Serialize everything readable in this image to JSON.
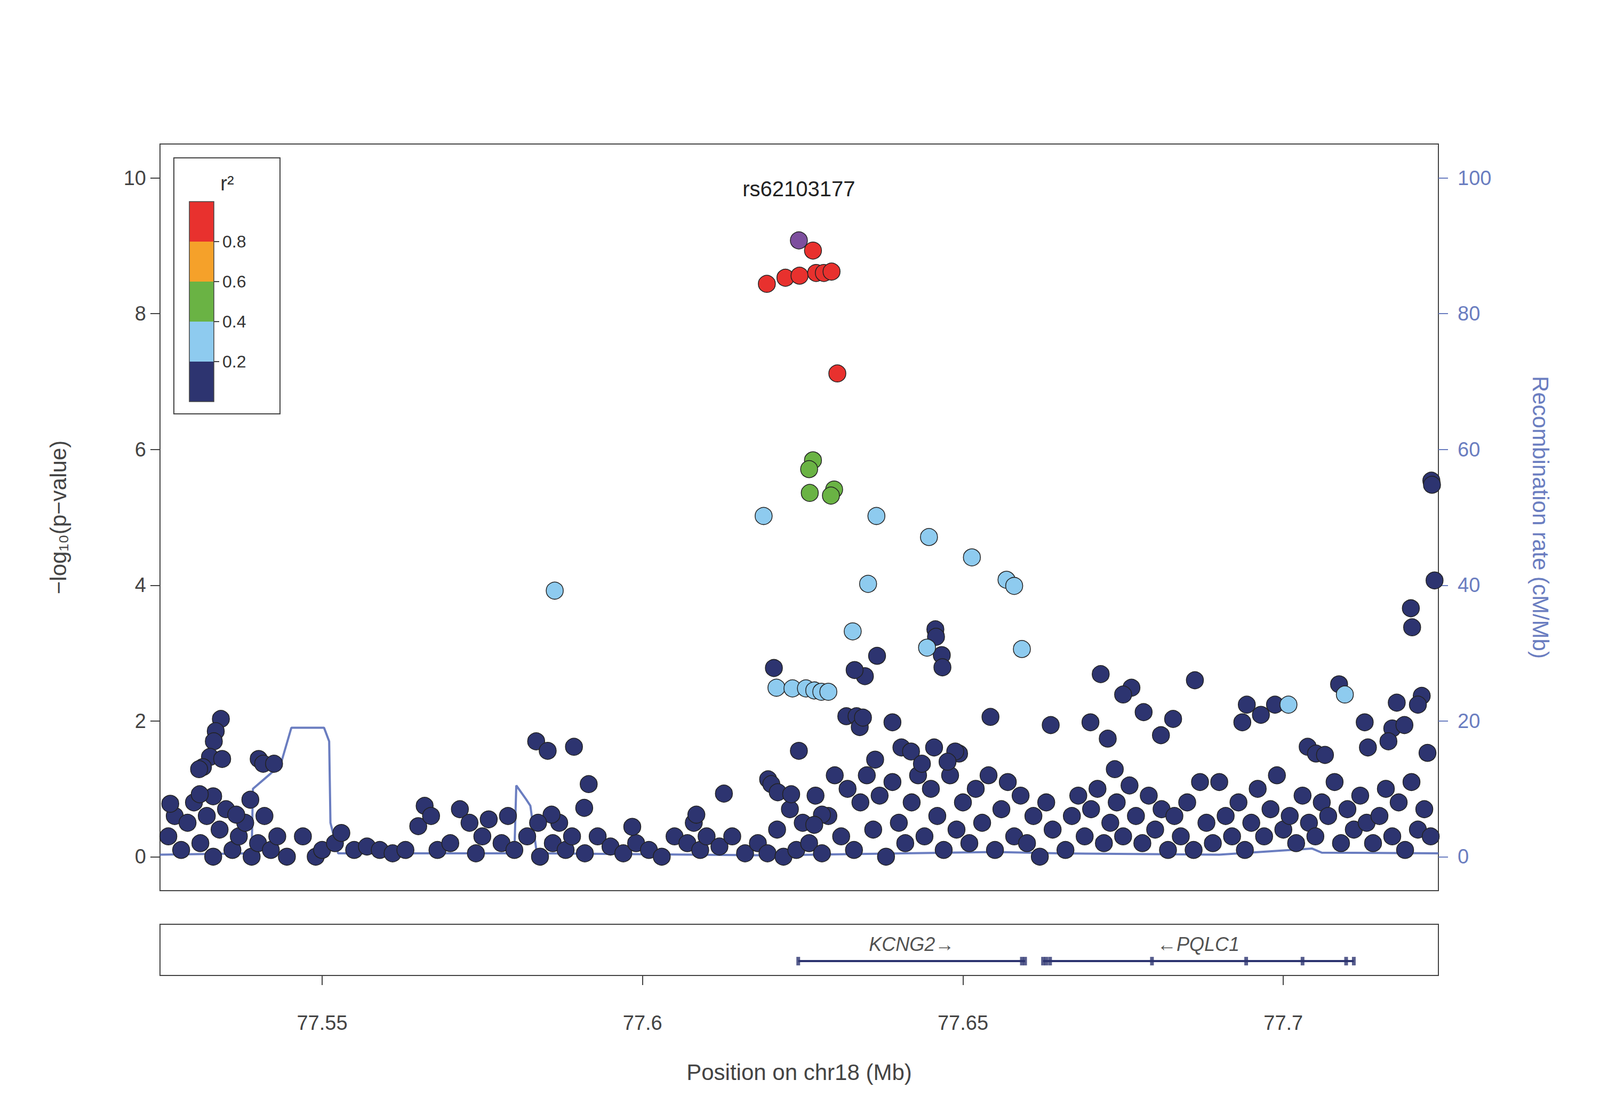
{
  "chart_data": {
    "type": "scatter",
    "xlabel": "Position on chr18 (Mb)",
    "ylabel": "−log₁₀(p−value)",
    "y2label": "Recombination rate (cM/Mb)",
    "xlim": [
      77.5247,
      77.7242
    ],
    "xticks": [
      77.55,
      77.6,
      77.65,
      77.7
    ],
    "ylim": [
      -0.5,
      10.5
    ],
    "yticks": [
      0,
      2,
      4,
      6,
      8,
      10
    ],
    "y2lim": [
      -5,
      105
    ],
    "y2ticks": [
      0,
      20,
      40,
      60,
      80,
      100
    ],
    "r2_scale": {
      "title": "r²",
      "breaks": [
        0,
        0.2,
        0.4,
        0.6,
        0.8,
        1
      ],
      "colors": [
        "#2d3470",
        "#8ecbef",
        "#6ab344",
        "#f5a12a",
        "#e8312e"
      ],
      "ticks": [
        0.2,
        0.4,
        0.6,
        0.8
      ]
    },
    "series": [
      {
        "type": "line",
        "axis": "y2",
        "color": "#6a7dc0",
        "x": [
          77.5247,
          77.539,
          77.5392,
          77.5435,
          77.5452,
          77.5503,
          77.5511,
          77.5513,
          77.5525,
          77.58,
          77.5803,
          77.5818,
          77.5825,
          77.5835,
          77.62,
          77.655,
          77.665,
          77.69,
          77.7045,
          77.706,
          77.7242
        ],
        "y": [
          0.3,
          0.5,
          10,
          13.5,
          19,
          19,
          17,
          5,
          0.5,
          0.5,
          10.5,
          8.5,
          7.5,
          0.5,
          0.2,
          0.7,
          0.5,
          0.3,
          1.2,
          0.6,
          0.5
        ]
      },
      {
        "type": "scatter",
        "color": "#2d3470",
        "x": [
          77.526,
          77.527,
          77.528,
          77.529,
          77.53,
          77.531,
          77.532,
          77.533,
          77.534,
          77.535,
          77.536,
          77.537,
          77.538,
          77.539,
          77.54,
          77.541,
          77.542,
          77.543,
          77.5445,
          77.547,
          77.549,
          77.55,
          77.552,
          77.553,
          77.555,
          77.557,
          77.559,
          77.561,
          77.563,
          77.565,
          77.566,
          77.567,
          77.568,
          77.57,
          77.5715,
          77.573,
          77.574,
          77.575,
          77.576,
          77.578,
          77.579,
          77.58,
          77.582,
          77.584,
          77.586,
          77.587,
          77.588,
          77.589,
          77.591,
          77.593,
          77.595,
          77.597,
          77.599,
          77.601,
          77.603,
          77.605,
          77.607,
          77.608,
          77.609,
          77.61,
          77.612,
          77.614,
          77.616,
          77.618,
          77.6195,
          77.621,
          77.622,
          77.623,
          77.624,
          77.625,
          77.626,
          77.627,
          77.628,
          77.629,
          77.63,
          77.631,
          77.632,
          77.633,
          77.634,
          77.635,
          77.636,
          77.637,
          77.638,
          77.639,
          77.64,
          77.641,
          77.642,
          77.643,
          77.644,
          77.645,
          77.646,
          77.647,
          77.648,
          77.649,
          77.65,
          77.651,
          77.652,
          77.653,
          77.654,
          77.655,
          77.656,
          77.657,
          77.658,
          77.659,
          77.66,
          77.661,
          77.662,
          77.663,
          77.664,
          77.666,
          77.667,
          77.668,
          77.669,
          77.67,
          77.671,
          77.672,
          77.673,
          77.674,
          77.675,
          77.676,
          77.677,
          77.678,
          77.679,
          77.68,
          77.681,
          77.682,
          77.683,
          77.684,
          77.685,
          77.686,
          77.687,
          77.688,
          77.689,
          77.69,
          77.691,
          77.692,
          77.693,
          77.694,
          77.695,
          77.696,
          77.697,
          77.698,
          77.699,
          77.7,
          77.701,
          77.702,
          77.703,
          77.704,
          77.705,
          77.706,
          77.707,
          77.708,
          77.709,
          77.71,
          77.711,
          77.712,
          77.713,
          77.714,
          77.715,
          77.716,
          77.717,
          77.718,
          77.719,
          77.72,
          77.721,
          77.722,
          77.723,
          77.7231,
          77.7232,
          77.7236,
          77.7199,
          77.7201,
          77.6205,
          77.6457,
          77.6458,
          77.6366,
          77.6347,
          77.6331,
          77.6467,
          77.6468,
          77.6715,
          77.6763,
          77.675,
          77.6862,
          77.7087,
          77.7177,
          77.7216,
          77.721,
          77.7225,
          77.717,
          77.7189,
          77.7127,
          77.6987,
          77.6943,
          77.6965,
          77.6936,
          77.7038,
          77.7051,
          77.7065,
          77.7132,
          77.7164,
          77.6828,
          77.6782,
          77.6809,
          77.6726,
          77.6699,
          77.6637,
          77.6737,
          77.6543,
          77.639,
          77.6318,
          77.6334,
          77.6339,
          77.6344,
          77.6404,
          77.6419,
          77.6455,
          77.6494,
          77.6488,
          77.6476,
          77.6436,
          77.6363,
          77.6244,
          77.5342,
          77.5334,
          77.5331,
          77.5325,
          77.5344,
          77.5314,
          77.5308,
          77.5401,
          77.5408,
          77.5425,
          77.533,
          77.5309,
          77.5366,
          77.5388,
          77.5263,
          77.5834,
          77.5852,
          77.5893,
          77.5916,
          77.5858,
          77.5909,
          77.5837,
          77.5984,
          77.6127,
          77.6084,
          77.6196,
          77.6201,
          77.6211,
          77.6232,
          77.628,
          77.6268
        ],
        "y": [
          0.3,
          0.6,
          0.1,
          0.5,
          0.8,
          0.2,
          0.6,
          0.0,
          0.4,
          0.7,
          0.1,
          0.3,
          0.5,
          0.0,
          0.2,
          0.6,
          0.1,
          0.3,
          0.0,
          0.3,
          0.0,
          0.1,
          0.2,
          0.35,
          0.1,
          0.15,
          0.1,
          0.05,
          0.1,
          0.45,
          0.75,
          0.6,
          0.1,
          0.2,
          0.7,
          0.5,
          0.05,
          0.3,
          0.55,
          0.2,
          0.6,
          0.1,
          0.3,
          0.0,
          0.2,
          0.5,
          0.1,
          0.3,
          0.05,
          0.3,
          0.15,
          0.05,
          0.2,
          0.1,
          0.0,
          0.3,
          0.2,
          0.5,
          0.1,
          0.3,
          0.15,
          0.3,
          0.05,
          0.2,
          0.05,
          0.4,
          0.0,
          0.7,
          0.1,
          0.5,
          0.2,
          0.9,
          0.05,
          0.6,
          1.2,
          0.3,
          1.0,
          0.1,
          0.8,
          1.2,
          0.4,
          0.9,
          0.0,
          1.1,
          0.5,
          0.2,
          0.8,
          1.2,
          0.3,
          1.0,
          0.6,
          0.1,
          1.2,
          0.4,
          0.8,
          0.2,
          1.0,
          0.5,
          1.2,
          0.1,
          0.7,
          1.1,
          0.3,
          0.9,
          0.2,
          0.6,
          0.0,
          0.8,
          0.4,
          0.1,
          0.6,
          0.9,
          0.3,
          0.7,
          1.0,
          0.2,
          0.5,
          0.8,
          0.3,
          1.05,
          0.6,
          0.2,
          0.9,
          0.4,
          0.7,
          0.1,
          0.6,
          0.3,
          0.8,
          0.1,
          1.1,
          0.5,
          0.2,
          1.1,
          0.6,
          0.3,
          0.8,
          0.1,
          0.5,
          1.0,
          0.3,
          0.7,
          1.2,
          0.4,
          0.6,
          0.2,
          0.9,
          0.5,
          0.3,
          0.8,
          0.6,
          1.1,
          0.2,
          0.7,
          0.4,
          0.9,
          0.5,
          0.2,
          0.6,
          1.0,
          0.3,
          0.8,
          0.1,
          1.1,
          0.4,
          0.7,
          0.3,
          5.54,
          5.48,
          4.07,
          3.66,
          3.38,
          2.78,
          3.35,
          3.24,
          2.96,
          2.66,
          2.75,
          2.97,
          2.79,
          2.69,
          2.49,
          2.39,
          2.6,
          2.54,
          2.27,
          2.37,
          2.24,
          1.53,
          1.89,
          1.94,
          1.98,
          2.24,
          2.24,
          2.09,
          1.98,
          1.62,
          1.52,
          1.5,
          1.61,
          1.7,
          2.03,
          2.13,
          1.79,
          1.74,
          1.98,
          1.94,
          1.29,
          2.06,
          1.98,
          2.07,
          2.07,
          1.91,
          2.05,
          1.61,
          1.55,
          1.61,
          1.52,
          1.55,
          1.4,
          1.37,
          1.43,
          1.56,
          2.03,
          1.85,
          1.7,
          1.47,
          1.44,
          1.32,
          1.29,
          1.44,
          1.37,
          1.37,
          0.89,
          0.92,
          0.62,
          0.84,
          0.78,
          1.7,
          1.56,
          1.62,
          1.07,
          0.62,
          0.72,
          0.5,
          0.44,
          0.93,
          0.62,
          1.14,
          1.07,
          0.95,
          0.92,
          0.62,
          0.47
        ]
      },
      {
        "type": "scatter",
        "color": "#8ecbef",
        "x": [
          77.5863,
          77.6189,
          77.6365,
          77.6447,
          77.6514,
          77.6568,
          77.658,
          77.6592,
          77.6352,
          77.6328,
          77.6444,
          77.6209,
          77.6234,
          77.6255,
          77.6268,
          77.6279,
          77.629,
          77.7008,
          77.7096
        ],
        "y": [
          3.92,
          5.02,
          5.02,
          4.71,
          4.41,
          4.08,
          3.99,
          3.06,
          4.02,
          3.32,
          3.08,
          2.49,
          2.48,
          2.48,
          2.45,
          2.43,
          2.43,
          2.24,
          2.39
        ]
      },
      {
        "type": "scatter",
        "color": "#6ab344",
        "x": [
          77.6266,
          77.626,
          77.6261,
          77.6299,
          77.6294
        ],
        "y": [
          5.84,
          5.71,
          5.36,
          5.41,
          5.32
        ]
      },
      {
        "type": "scatter",
        "color": "#e8312e",
        "x": [
          77.6266,
          77.6194,
          77.6223,
          77.6245,
          77.6271,
          77.6283,
          77.6295,
          77.6304
        ],
        "y": [
          8.93,
          8.44,
          8.53,
          8.56,
          8.6,
          8.6,
          8.62,
          7.12
        ]
      },
      {
        "type": "scatter",
        "color": "#7d4f9e",
        "label": "rs62103177",
        "x": [
          77.6244
        ],
        "y": [
          9.08
        ]
      }
    ],
    "genes": [
      {
        "label": "KCNG2→",
        "start": 77.6243,
        "end": 77.6597,
        "exons": [
          77.6243,
          77.6592,
          77.6597
        ]
      },
      {
        "label": "←PQLC1",
        "start": 77.6625,
        "end": 77.711,
        "exons": [
          77.6625,
          77.663,
          77.6636,
          77.6795,
          77.6942,
          77.703,
          77.7098,
          77.711
        ]
      }
    ]
  }
}
